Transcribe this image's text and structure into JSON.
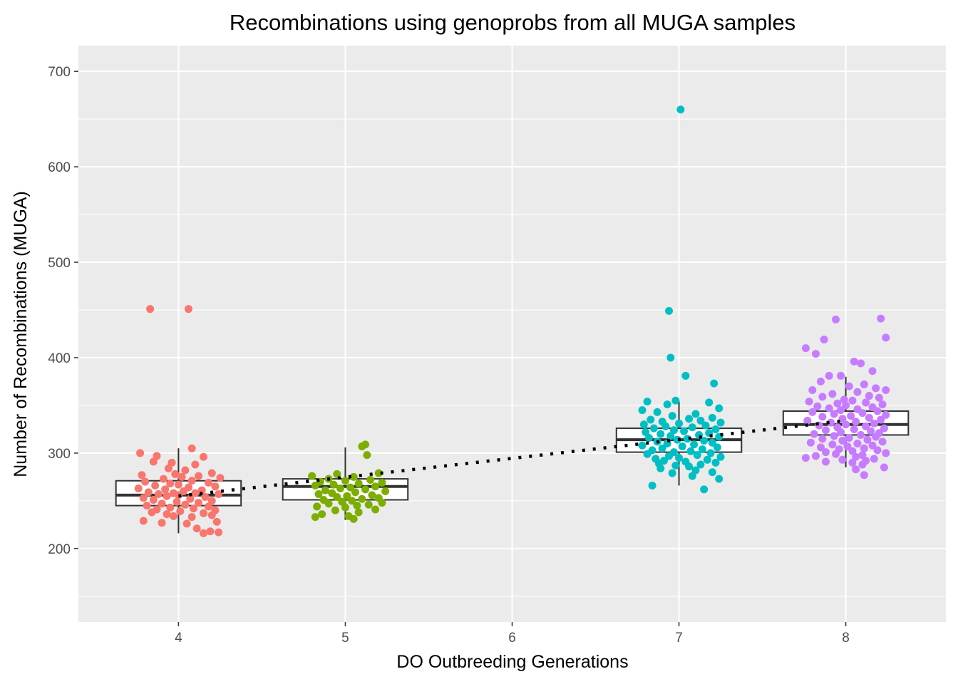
{
  "chart_data": {
    "type": "boxplot",
    "title": "Recombinations using genoprobs from all MUGA samples",
    "xlabel": "DO Outbreeding Generations",
    "ylabel": "Number of Recombinations (MUGA)",
    "xlim": [
      3.4,
      8.6
    ],
    "ylim": [
      123,
      727
    ],
    "x_ticks": [
      4,
      5,
      6,
      7,
      8
    ],
    "x_tick_labels": [
      "4",
      "5",
      "6",
      "7",
      "8"
    ],
    "y_ticks": [
      200,
      300,
      400,
      500,
      600,
      700
    ],
    "y_tick_labels": [
      "200",
      "300",
      "400",
      "500",
      "600",
      "700"
    ],
    "grid": true,
    "legend": "none",
    "colors": {
      "panel": "#ebebeb",
      "grid": "#ffffff",
      "box": "#333333",
      "trend": "#000000",
      "group_colors": {
        "4": "#f8766d",
        "5": "#7cae00",
        "7": "#00bfc4",
        "8": "#c77cff"
      }
    },
    "boxes": [
      {
        "generation": 4,
        "q1": 245,
        "median": 256,
        "q3": 271,
        "whisker_low": 216,
        "whisker_high": 305
      },
      {
        "generation": 5,
        "q1": 251,
        "median": 265,
        "q3": 273,
        "whisker_low": 230,
        "whisker_high": 306
      },
      {
        "generation": 7,
        "q1": 301,
        "median": 314,
        "q3": 326,
        "whisker_low": 266,
        "whisker_high": 354
      },
      {
        "generation": 8,
        "q1": 319,
        "median": 330,
        "q3": 344,
        "whisker_low": 285,
        "whisker_high": 380
      }
    ],
    "trend_line": {
      "style": "dotted",
      "x": [
        4,
        8
      ],
      "y": [
        255,
        334
      ]
    },
    "points": [
      {
        "generation": 4,
        "values": [
          [
            3.83,
            451
          ],
          [
            4.06,
            451
          ],
          [
            4.08,
            305
          ],
          [
            3.77,
            300
          ],
          [
            4.15,
            296
          ],
          [
            3.87,
            297
          ],
          [
            3.85,
            291
          ],
          [
            3.96,
            290
          ],
          [
            4.1,
            288
          ],
          [
            3.94,
            284
          ],
          [
            4.04,
            282
          ],
          [
            4.2,
            279
          ],
          [
            3.98,
            278
          ],
          [
            3.78,
            277
          ],
          [
            4.12,
            276
          ],
          [
            4.02,
            275
          ],
          [
            4.25,
            274
          ],
          [
            3.91,
            273
          ],
          [
            4.08,
            271
          ],
          [
            3.8,
            270
          ],
          [
            4.18,
            269
          ],
          [
            3.95,
            268
          ],
          [
            4.0,
            267
          ],
          [
            3.86,
            266
          ],
          [
            4.22,
            265
          ],
          [
            4.06,
            264
          ],
          [
            3.76,
            263
          ],
          [
            3.92,
            262
          ],
          [
            4.14,
            261
          ],
          [
            4.03,
            260
          ],
          [
            3.82,
            259
          ],
          [
            4.1,
            258
          ],
          [
            3.97,
            258
          ],
          [
            3.88,
            257
          ],
          [
            4.24,
            257
          ],
          [
            4.0,
            256
          ],
          [
            3.93,
            255
          ],
          [
            4.16,
            254
          ],
          [
            3.79,
            253
          ],
          [
            4.07,
            252
          ],
          [
            3.85,
            251
          ],
          [
            4.2,
            250
          ],
          [
            3.99,
            249
          ],
          [
            4.12,
            248
          ],
          [
            3.9,
            247
          ],
          [
            4.04,
            246
          ],
          [
            3.81,
            245
          ],
          [
            4.18,
            244
          ],
          [
            3.95,
            243
          ],
          [
            4.09,
            242
          ],
          [
            3.87,
            241
          ],
          [
            4.22,
            240
          ],
          [
            4.01,
            239
          ],
          [
            3.84,
            238
          ],
          [
            4.15,
            237
          ],
          [
            3.93,
            236
          ],
          [
            4.2,
            235
          ],
          [
            3.97,
            234
          ],
          [
            4.08,
            233
          ],
          [
            3.79,
            229
          ],
          [
            4.23,
            228
          ],
          [
            3.9,
            227
          ],
          [
            4.05,
            226
          ],
          [
            4.11,
            221
          ],
          [
            4.19,
            218
          ],
          [
            4.24,
            217
          ],
          [
            4.15,
            216
          ]
        ]
      },
      {
        "generation": 5,
        "values": [
          [
            5.12,
            309
          ],
          [
            5.1,
            307
          ],
          [
            5.13,
            298
          ],
          [
            4.95,
            278
          ],
          [
            5.2,
            279
          ],
          [
            4.8,
            276
          ],
          [
            5.05,
            275
          ],
          [
            4.9,
            273
          ],
          [
            5.15,
            272
          ],
          [
            5.0,
            271
          ],
          [
            4.85,
            270
          ],
          [
            5.22,
            269
          ],
          [
            5.08,
            268
          ],
          [
            4.93,
            267
          ],
          [
            4.82,
            266
          ],
          [
            5.18,
            265
          ],
          [
            5.03,
            264
          ],
          [
            4.97,
            263
          ],
          [
            5.12,
            262
          ],
          [
            4.88,
            261
          ],
          [
            5.24,
            260
          ],
          [
            5.06,
            259
          ],
          [
            4.92,
            258
          ],
          [
            4.84,
            257
          ],
          [
            5.16,
            256
          ],
          [
            5.01,
            255
          ],
          [
            4.95,
            254
          ],
          [
            5.2,
            253
          ],
          [
            5.1,
            252
          ],
          [
            4.87,
            251
          ],
          [
            5.04,
            250
          ],
          [
            4.98,
            249
          ],
          [
            5.22,
            248
          ],
          [
            4.9,
            247
          ],
          [
            5.14,
            246
          ],
          [
            5.07,
            245
          ],
          [
            4.83,
            244
          ],
          [
            5.0,
            243
          ],
          [
            5.18,
            241
          ],
          [
            4.94,
            240
          ],
          [
            5.08,
            238
          ],
          [
            4.86,
            236
          ],
          [
            5.02,
            234
          ],
          [
            4.82,
            233
          ],
          [
            5.05,
            231
          ]
        ]
      },
      {
        "generation": 7,
        "values": [
          [
            7.01,
            660
          ],
          [
            6.94,
            449
          ],
          [
            6.95,
            400
          ],
          [
            7.04,
            381
          ],
          [
            7.21,
            373
          ],
          [
            6.98,
            355
          ],
          [
            7.18,
            353
          ],
          [
            6.81,
            354
          ],
          [
            6.93,
            351
          ],
          [
            7.24,
            347
          ],
          [
            6.78,
            345
          ],
          [
            6.87,
            343
          ],
          [
            7.1,
            341
          ],
          [
            6.96,
            339
          ],
          [
            7.2,
            337
          ],
          [
            7.06,
            336
          ],
          [
            6.83,
            335
          ],
          [
            7.13,
            334
          ],
          [
            6.9,
            333
          ],
          [
            7.25,
            332
          ],
          [
            7.0,
            331
          ],
          [
            6.79,
            330
          ],
          [
            7.16,
            329
          ],
          [
            6.92,
            328
          ],
          [
            7.08,
            327
          ],
          [
            6.85,
            326
          ],
          [
            7.22,
            325
          ],
          [
            6.97,
            324
          ],
          [
            7.03,
            323
          ],
          [
            6.8,
            322
          ],
          [
            7.18,
            321
          ],
          [
            6.89,
            320
          ],
          [
            7.12,
            319
          ],
          [
            6.95,
            318
          ],
          [
            7.24,
            317
          ],
          [
            6.82,
            316
          ],
          [
            7.05,
            315
          ],
          [
            6.99,
            314
          ],
          [
            7.15,
            313
          ],
          [
            6.87,
            312
          ],
          [
            7.2,
            311
          ],
          [
            6.93,
            310
          ],
          [
            7.09,
            309
          ],
          [
            6.78,
            308
          ],
          [
            7.02,
            307
          ],
          [
            7.23,
            306
          ],
          [
            6.9,
            305
          ],
          [
            7.14,
            304
          ],
          [
            6.84,
            303
          ],
          [
            7.07,
            302
          ],
          [
            6.97,
            301
          ],
          [
            7.19,
            300
          ],
          [
            6.81,
            299
          ],
          [
            7.11,
            298
          ],
          [
            6.94,
            297
          ],
          [
            7.25,
            296
          ],
          [
            7.0,
            295
          ],
          [
            6.86,
            294
          ],
          [
            7.17,
            293
          ],
          [
            6.91,
            292
          ],
          [
            7.04,
            291
          ],
          [
            7.22,
            290
          ],
          [
            6.88,
            289
          ],
          [
            7.13,
            288
          ],
          [
            6.98,
            287
          ],
          [
            7.06,
            286
          ],
          [
            6.89,
            284
          ],
          [
            7.1,
            282
          ],
          [
            7.2,
            280
          ],
          [
            6.96,
            279
          ],
          [
            7.08,
            276
          ],
          [
            7.24,
            273
          ],
          [
            6.84,
            266
          ],
          [
            7.15,
            262
          ]
        ]
      },
      {
        "generation": 8,
        "values": [
          [
            8.21,
            441
          ],
          [
            7.94,
            440
          ],
          [
            8.24,
            421
          ],
          [
            7.87,
            419
          ],
          [
            7.76,
            410
          ],
          [
            7.82,
            404
          ],
          [
            8.05,
            396
          ],
          [
            8.09,
            394
          ],
          [
            8.16,
            386
          ],
          [
            7.9,
            381
          ],
          [
            7.97,
            381
          ],
          [
            7.85,
            375
          ],
          [
            8.11,
            372
          ],
          [
            8.02,
            370
          ],
          [
            8.18,
            368
          ],
          [
            7.8,
            366
          ],
          [
            8.24,
            366
          ],
          [
            8.07,
            364
          ],
          [
            7.92,
            362
          ],
          [
            8.14,
            360
          ],
          [
            7.86,
            359
          ],
          [
            8.2,
            358
          ],
          [
            7.99,
            356
          ],
          [
            8.04,
            355
          ],
          [
            7.78,
            354
          ],
          [
            8.12,
            353
          ],
          [
            7.95,
            352
          ],
          [
            8.22,
            351
          ],
          [
            8.0,
            350
          ],
          [
            7.83,
            349
          ],
          [
            8.16,
            348
          ],
          [
            7.9,
            347
          ],
          [
            8.07,
            346
          ],
          [
            7.97,
            345
          ],
          [
            8.19,
            344
          ],
          [
            7.8,
            343
          ],
          [
            8.1,
            342
          ],
          [
            7.93,
            341
          ],
          [
            8.24,
            340
          ],
          [
            8.03,
            339
          ],
          [
            7.86,
            338
          ],
          [
            8.14,
            337
          ],
          [
            7.98,
            336
          ],
          [
            8.21,
            335
          ],
          [
            7.77,
            334
          ],
          [
            8.06,
            333
          ],
          [
            7.91,
            332
          ],
          [
            8.17,
            331
          ],
          [
            8.0,
            330
          ],
          [
            7.84,
            329
          ],
          [
            8.12,
            328
          ],
          [
            7.95,
            327
          ],
          [
            8.23,
            326
          ],
          [
            8.05,
            325
          ],
          [
            7.88,
            324
          ],
          [
            8.15,
            323
          ],
          [
            7.97,
            322
          ],
          [
            8.2,
            321
          ],
          [
            7.81,
            320
          ],
          [
            8.09,
            319
          ],
          [
            7.93,
            318
          ],
          [
            8.18,
            317
          ],
          [
            8.02,
            316
          ],
          [
            7.86,
            315
          ],
          [
            8.13,
            314
          ],
          [
            7.98,
            313
          ],
          [
            8.22,
            312
          ],
          [
            7.79,
            311
          ],
          [
            8.07,
            310
          ],
          [
            7.92,
            309
          ],
          [
            8.16,
            308
          ],
          [
            8.01,
            307
          ],
          [
            7.85,
            306
          ],
          [
            8.11,
            305
          ],
          [
            7.96,
            304
          ],
          [
            8.19,
            303
          ],
          [
            8.04,
            302
          ],
          [
            7.88,
            301
          ],
          [
            8.24,
            300
          ],
          [
            7.94,
            299
          ],
          [
            8.1,
            298
          ],
          [
            7.82,
            297
          ],
          [
            8.06,
            296
          ],
          [
            7.76,
            295
          ],
          [
            8.17,
            294
          ],
          [
            7.98,
            293
          ],
          [
            8.12,
            292
          ],
          [
            7.88,
            291
          ],
          [
            8.04,
            290
          ],
          [
            8.1,
            288
          ],
          [
            8.23,
            285
          ],
          [
            8.06,
            283
          ],
          [
            8.11,
            277
          ]
        ]
      }
    ]
  }
}
